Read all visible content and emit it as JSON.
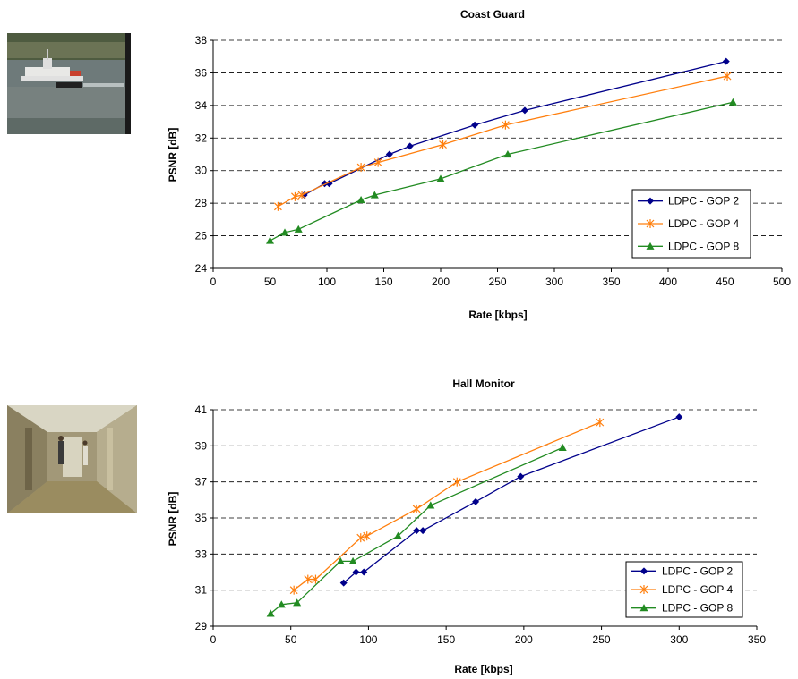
{
  "figures": [
    {
      "thumbnail": "coast-guard-video-frame",
      "chart": {
        "type": "line",
        "title": "Coast Guard",
        "xlabel": "Rate [kbps]",
        "ylabel": "PSNR [dB]",
        "xlim": [
          0,
          500
        ],
        "ylim": [
          24,
          38
        ],
        "xticks": [
          0,
          50,
          100,
          150,
          200,
          250,
          300,
          350,
          400,
          450,
          500
        ],
        "yticks": [
          24,
          26,
          28,
          30,
          32,
          34,
          36,
          38
        ],
        "grid": "horizontal-dashed",
        "legend_position": "right-center",
        "series": [
          {
            "name": "LDPC - GOP 2",
            "marker": "diamond",
            "color": "#00008B",
            "x": [
              80,
              98,
              102,
              155,
              173,
              230,
              274,
              451
            ],
            "y": [
              28.5,
              29.2,
              29.2,
              31.0,
              31.5,
              32.8,
              33.7,
              36.7
            ]
          },
          {
            "name": "LDPC - GOP 4",
            "marker": "asterisk",
            "color": "#FF7F0E",
            "x": [
              57,
              72,
              78,
              130,
              145,
              202,
              257,
              452
            ],
            "y": [
              27.8,
              28.4,
              28.5,
              30.2,
              30.5,
              31.6,
              32.8,
              35.8
            ]
          },
          {
            "name": "LDPC - GOP 8",
            "marker": "triangle",
            "color": "#228B22",
            "x": [
              50,
              63,
              75,
              130,
              142,
              200,
              259,
              457
            ],
            "y": [
              25.7,
              26.2,
              26.4,
              28.2,
              28.5,
              29.5,
              31.0,
              34.2
            ]
          }
        ]
      }
    },
    {
      "thumbnail": "hall-monitor-video-frame",
      "chart": {
        "type": "line",
        "title": "Hall Monitor",
        "xlabel": "Rate [kbps]",
        "ylabel": "PSNR [dB]",
        "xlim": [
          0,
          350
        ],
        "ylim": [
          29,
          41
        ],
        "xticks": [
          0,
          50,
          100,
          150,
          200,
          250,
          300,
          350
        ],
        "yticks": [
          29,
          31,
          33,
          35,
          37,
          39,
          41
        ],
        "grid": "horizontal-dashed",
        "legend_position": "bottom-right",
        "series": [
          {
            "name": "LDPC - GOP 2",
            "marker": "diamond",
            "color": "#00008B",
            "x": [
              84,
              92,
              97,
              131,
              135,
              169,
              198,
              300
            ],
            "y": [
              31.4,
              32.0,
              32.0,
              34.3,
              34.3,
              35.9,
              37.3,
              40.6
            ]
          },
          {
            "name": "LDPC - GOP 4",
            "marker": "asterisk",
            "color": "#FF7F0E",
            "x": [
              52,
              61,
              66,
              95,
              99,
              131,
              157,
              249
            ],
            "y": [
              31.0,
              31.6,
              31.6,
              33.9,
              34.0,
              35.5,
              37.0,
              40.3
            ]
          },
          {
            "name": "LDPC - GOP 8",
            "marker": "triangle",
            "color": "#228B22",
            "x": [
              37,
              44,
              54,
              82,
              90,
              119,
              140,
              225
            ],
            "y": [
              29.7,
              30.2,
              30.3,
              32.6,
              32.6,
              34.0,
              35.7,
              38.9
            ]
          }
        ]
      }
    }
  ]
}
